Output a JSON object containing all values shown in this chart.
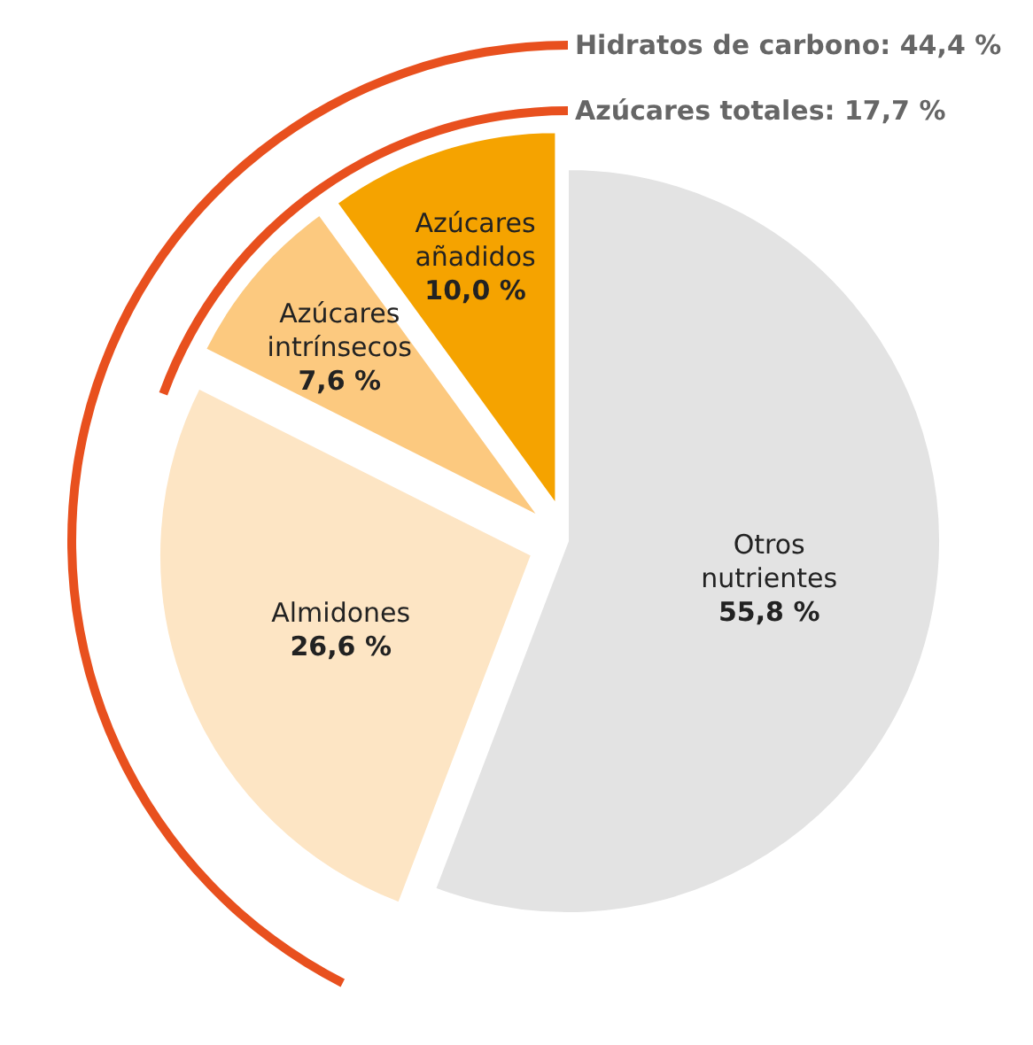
{
  "chart_data": {
    "type": "pie",
    "categories": [
      "Otros nutrientes",
      "Almidones",
      "Azúcares intrínsecos",
      "Azúcares añadidos"
    ],
    "values": [
      55.8,
      26.6,
      7.6,
      10.0
    ],
    "value_labels": [
      "55,8 %",
      "26,6 %",
      "7,6 %",
      "10,0 %"
    ],
    "colors": [
      "#e3e3e3",
      "#fde5c4",
      "#fcc97f",
      "#f5a300"
    ],
    "annotations": [
      "Hidratos de carbono: 44,4 %",
      "Azúcares totales: 17,7 %"
    ]
  }
}
